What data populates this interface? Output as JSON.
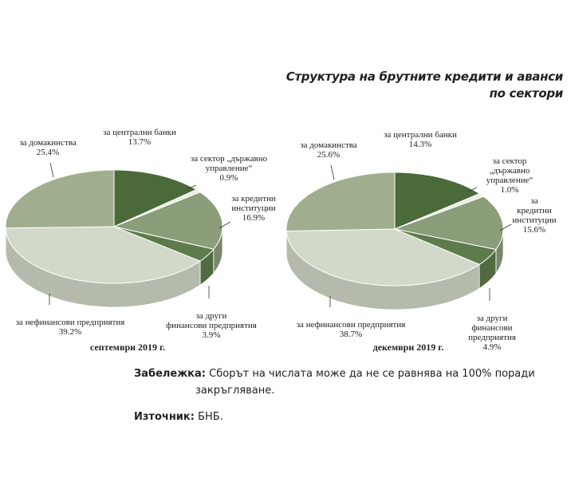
{
  "header": {
    "title": "Структура на брутните кредити и аванси\nпо сектори"
  },
  "chart_data": [
    {
      "type": "pie",
      "title": "септември 2019 г.",
      "categories": [
        "за централни банки",
        "за сектор „държавно\nуправление“",
        "за кредитни\nинституции",
        "за други\nфинансови предприятия",
        "за нефинансови предприятия",
        "за домакинства"
      ],
      "values": [
        13.7,
        0.9,
        16.9,
        3.9,
        39.2,
        25.4
      ],
      "value_labels": [
        "13.7%",
        "0.9%",
        "16.9%",
        "3.9%",
        "39.2%",
        "25.4%"
      ],
      "colors": [
        "#4b6a39",
        "#e9ede2",
        "#8b9d79",
        "#5e7b4b",
        "#d2d9c8",
        "#a0ad8f"
      ]
    },
    {
      "type": "pie",
      "title": "декември 2019 г.",
      "categories": [
        "за централни банки",
        "за сектор „държавно\nуправление“",
        "за кредитни\nинституции",
        "за други\nфинансови предприятия",
        "за нефинансови предприятия",
        "за домакинства"
      ],
      "values": [
        14.3,
        1.0,
        15.6,
        4.9,
        38.7,
        25.6
      ],
      "value_labels": [
        "14.3%",
        "1.0%",
        "15.6%",
        "4.9%",
        "38.7%",
        "25.6%"
      ],
      "colors": [
        "#4b6a39",
        "#e9ede2",
        "#8b9d79",
        "#5e7b4b",
        "#d2d9c8",
        "#a0ad8f"
      ]
    }
  ],
  "notes": {
    "note_label": "Забележка:",
    "note_text": "Сборът на числата може да не се равнява на 100% поради закръгляване.",
    "source_label": "Източник:",
    "source_text": "БНБ."
  }
}
